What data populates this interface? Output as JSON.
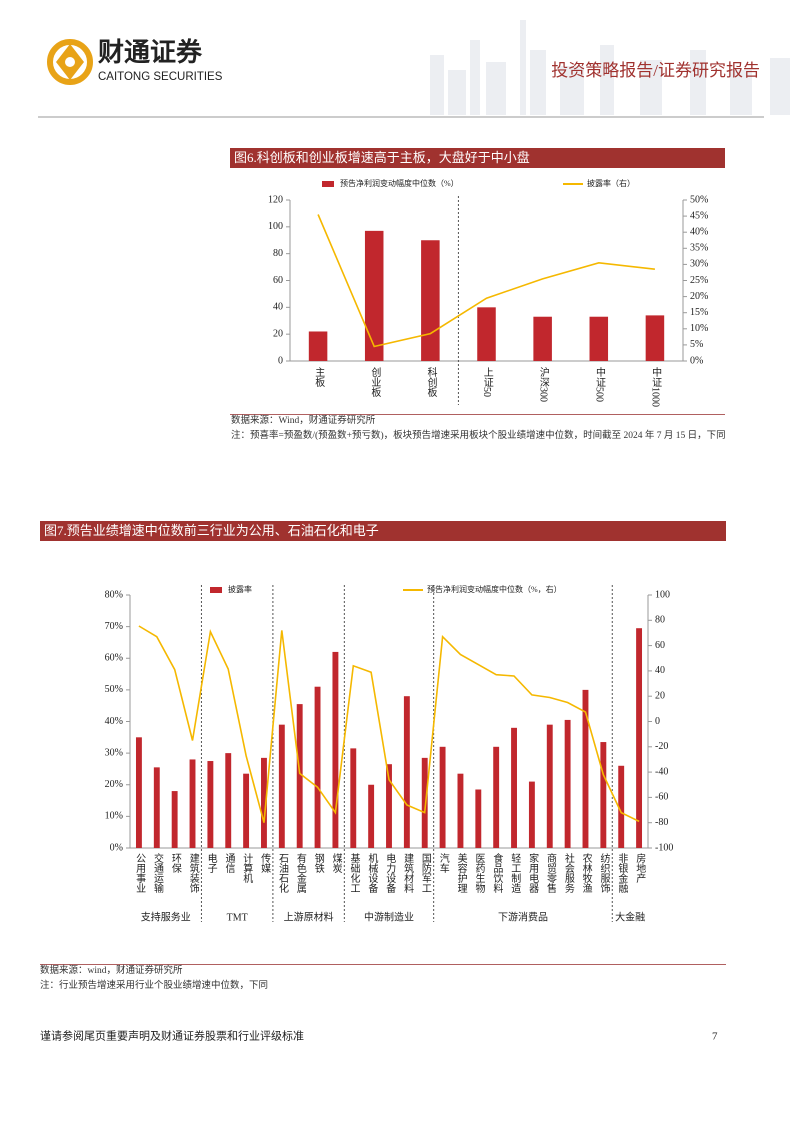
{
  "header": {
    "logo_cn": "财通证券",
    "logo_en": "CAITONG SECURITIES",
    "report_type": "投资策略报告/证券研究报告"
  },
  "chart_data": [
    {
      "type": "bar",
      "title": "图6.科创板和创业板增速高于主板，大盘好于中小盘",
      "categories": [
        "主板",
        "创业板",
        "科创板",
        "上证50",
        "沪深300",
        "中证500",
        "中证1000"
      ],
      "groups": [
        {
          "span": 3
        },
        {
          "span": 4
        }
      ],
      "series": [
        {
          "name": "预告净利润变动幅度中位数（%）",
          "type": "bar",
          "color": "#c1272d",
          "values": [
            22,
            97,
            90,
            40,
            33,
            33,
            34
          ]
        },
        {
          "name": "披露率（右）",
          "type": "line",
          "axis": "y2",
          "color": "#f5b800",
          "values": [
            45.5,
            4.5,
            8.5,
            19.5,
            25.5,
            30.5,
            28.5
          ]
        }
      ],
      "ylim": [
        0,
        120
      ],
      "yticks": [
        0,
        20,
        40,
        60,
        80,
        100,
        120
      ],
      "y2lim": [
        0,
        50
      ],
      "y2ticks": [
        {
          "value": 0,
          "label": "0%"
        },
        {
          "value": 5,
          "label": "5%"
        },
        {
          "value": 10,
          "label": "10%"
        },
        {
          "value": 15,
          "label": "15%"
        },
        {
          "value": 20,
          "label": "20%"
        },
        {
          "value": 25,
          "label": "25%"
        },
        {
          "value": 30,
          "label": "30%"
        },
        {
          "value": 35,
          "label": "35%"
        },
        {
          "value": 40,
          "label": "40%"
        },
        {
          "value": 45,
          "label": "45%"
        },
        {
          "value": 50,
          "label": "50%"
        }
      ],
      "source": "数据来源：Wind，财通证券研究所",
      "note": "注：预喜率=预盈数/(预盈数+预亏数)，板块预告增速采用板块个股业绩增速中位数，时间截至 2024 年 7 月 15 日，下同"
    },
    {
      "type": "bar",
      "title": "图7.预告业绩增速中位数前三行业为公用、石油石化和电子",
      "categories": [
        "公用事业",
        "交通运输",
        "环保",
        "建筑装饰",
        "电子",
        "通信",
        "计算机",
        "传媒",
        "石油石化",
        "有色金属",
        "钢铁",
        "煤炭",
        "基础化工",
        "机械设备",
        "电力设备",
        "建筑材料",
        "国防军工",
        "汽车",
        "美容护理",
        "医药生物",
        "食品饮料",
        "轻工制造",
        "家用电器",
        "商贸零售",
        "社会服务",
        "农林牧渔",
        "纺织服饰",
        "非银金融",
        "房地产"
      ],
      "groups": [
        {
          "label": "支持服务业",
          "span": 4
        },
        {
          "label": "TMT",
          "span": 4
        },
        {
          "label": "上游原材料",
          "span": 4
        },
        {
          "label": "中游制造业",
          "span": 5
        },
        {
          "label": "下游消费品",
          "span": 10
        },
        {
          "label": "大金融",
          "span": 2
        }
      ],
      "series": [
        {
          "name": "披露率",
          "type": "bar",
          "color": "#c1272d",
          "values": [
            35,
            25.5,
            18,
            28,
            27.5,
            30,
            23.5,
            28.5,
            39,
            45.5,
            51,
            62,
            31.5,
            20,
            26.5,
            48,
            28.5,
            32,
            23.5,
            18.5,
            32,
            38,
            21,
            39,
            40.5,
            50,
            33.5,
            26,
            69.5
          ]
        },
        {
          "name": "预告净利润变动幅度中位数（%，右）",
          "type": "line",
          "axis": "y2",
          "color": "#f5b800",
          "values": [
            75.5,
            67,
            41,
            -15,
            71,
            41.5,
            -27,
            -80,
            72,
            -41,
            -52,
            -72,
            44,
            39,
            -46,
            -66,
            -72,
            67,
            53,
            45,
            37,
            36,
            21,
            19,
            15,
            7.5,
            -42,
            -72,
            -79
          ]
        }
      ],
      "ylim": [
        0,
        80
      ],
      "yticks": [
        {
          "value": 0,
          "label": "0%"
        },
        {
          "value": 10,
          "label": "10%"
        },
        {
          "value": 20,
          "label": "20%"
        },
        {
          "value": 30,
          "label": "30%"
        },
        {
          "value": 40,
          "label": "40%"
        },
        {
          "value": 50,
          "label": "50%"
        },
        {
          "value": 60,
          "label": "60%"
        },
        {
          "value": 70,
          "label": "70%"
        },
        {
          "value": 80,
          "label": "80%"
        }
      ],
      "y2lim": [
        -100,
        100
      ],
      "y2ticks": [
        -100,
        -80,
        -60,
        -40,
        -20,
        0,
        20,
        40,
        60,
        80,
        100
      ],
      "source": "数据来源：wind，财通证券研究所",
      "note": "注：行业预告增速采用行业个股业绩增速中位数，下同"
    }
  ],
  "footer": {
    "disclaimer": "谨请参阅尾页重要声明及财通证券股票和行业评级标准",
    "page": "7"
  }
}
